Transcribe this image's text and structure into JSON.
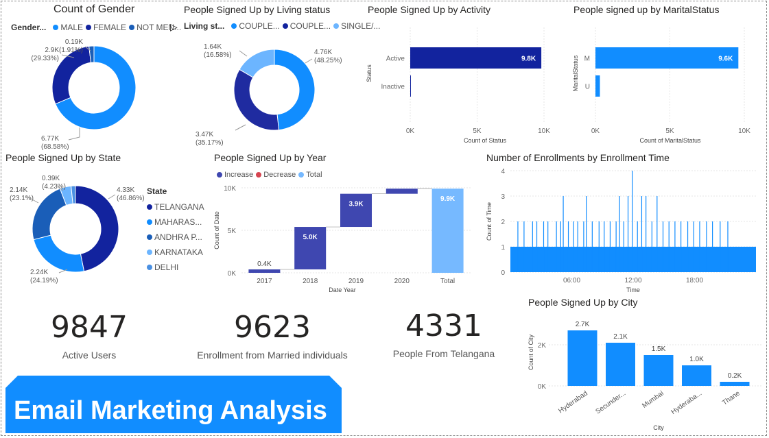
{
  "colors": {
    "dark_navy": "#12239E",
    "navy": "#1F2BA0",
    "blue": "#118DFF",
    "mid_blue": "#1A5EB8",
    "light_blue": "#6CB5FF",
    "increase": "#3F47B0",
    "decrease": "#D64550",
    "total": "#76B9FF",
    "banner": "#118DFF"
  },
  "banner": {
    "title": "Email Marketing Analysis"
  },
  "kpis": [
    {
      "value": "9847",
      "label": "Active Users"
    },
    {
      "value": "9623",
      "label": "Enrollment from Married individuals"
    },
    {
      "value": "4331",
      "label": "People From Telangana"
    }
  ],
  "chart_data": [
    {
      "id": "gender",
      "type": "pie",
      "title": "Count of Gender",
      "legend_title": "Gender...",
      "legend": [
        "MALE",
        "FEMALE",
        "NOT MEN..."
      ],
      "slices": [
        {
          "name": "MALE",
          "value": 6770,
          "label": "6.77K (68.58%)"
        },
        {
          "name": "FEMALE",
          "value": 2900,
          "label": "2.9K (29.33%)"
        },
        {
          "name": "NOT MEN...",
          "value": 190,
          "label": "0.19K (1.91%)"
        }
      ]
    },
    {
      "id": "living",
      "type": "pie",
      "title": "People Signed Up by Living status",
      "legend_title": "Living st...",
      "legend": [
        "COUPLE...",
        "COUPLE...",
        "SINGLE/..."
      ],
      "slices": [
        {
          "name": "COUPLE...",
          "value": 4760,
          "label": "4.76K (48.25%)"
        },
        {
          "name": "COUPLE...",
          "value": 3470,
          "label": "3.47K (35.17%)"
        },
        {
          "name": "SINGLE/...",
          "value": 1640,
          "label": "1.64K (16.58%)"
        }
      ]
    },
    {
      "id": "activity",
      "type": "bar",
      "orientation": "horizontal",
      "title": "People Signed Up by Activity",
      "categories": [
        "Active",
        "Inactive"
      ],
      "values": [
        9800,
        50
      ],
      "data_labels": [
        "9.8K",
        ""
      ],
      "xlabel": "Count of Status",
      "ylabel": "Status",
      "xlim": [
        0,
        10000
      ],
      "ticks": [
        "0K",
        "5K",
        "10K"
      ]
    },
    {
      "id": "marital",
      "type": "bar",
      "orientation": "horizontal",
      "title": "People signed up by MaritalStatus",
      "categories": [
        "M",
        "U"
      ],
      "values": [
        9600,
        300
      ],
      "data_labels": [
        "9.6K",
        ""
      ],
      "xlabel": "Count of MaritalStatus",
      "ylabel": "MaritalStatus",
      "xlim": [
        0,
        10000
      ],
      "ticks": [
        "0K",
        "5K",
        "10K"
      ]
    },
    {
      "id": "state",
      "type": "pie",
      "title": "People Signed Up by State",
      "legend_title": "State",
      "legend": [
        "TELANGANA",
        "MAHARAS...",
        "ANDHRA P...",
        "KARNATAKA",
        "DELHI"
      ],
      "slices": [
        {
          "name": "TELANGANA",
          "value": 4330,
          "label": "4.33K (46.86%)"
        },
        {
          "name": "MAHARAS...",
          "value": 2240,
          "label": "2.24K (24.19%)"
        },
        {
          "name": "ANDHRA P...",
          "value": 2140,
          "label": "2.14K (23.1%)"
        },
        {
          "name": "KARNATAKA",
          "value": 390,
          "label": "0.39K (4.23%)"
        },
        {
          "name": "DELHI",
          "value": 150,
          "label": ""
        }
      ]
    },
    {
      "id": "year",
      "type": "bar",
      "subtype": "waterfall",
      "title": "People Signed Up by Year",
      "legend": [
        "Increase",
        "Decrease",
        "Total"
      ],
      "categories": [
        "2017",
        "2018",
        "2019",
        "2020",
        "Total"
      ],
      "values": [
        400,
        5000,
        3900,
        600,
        9900
      ],
      "data_labels": [
        "0.4K",
        "5.0K",
        "3.9K",
        "",
        "9.9K"
      ],
      "xlabel": "Date Year",
      "ylabel": "Count of Date",
      "ylim": [
        0,
        10000
      ],
      "ticks": [
        "0K",
        "5K",
        "10K"
      ]
    },
    {
      "id": "enrollment_time",
      "type": "bar",
      "title": "Number of Enrollments by Enrollment Time",
      "xlabel": "Time",
      "ylabel": "Count of Time",
      "ylim": [
        0,
        4
      ],
      "yticks": [
        "0",
        "1",
        "2",
        "3",
        "4"
      ],
      "xticks": [
        "06:00",
        "12:00",
        "18:00"
      ],
      "baseline": 1,
      "spikes": [
        {
          "t": "00:44",
          "v": 2
        },
        {
          "t": "01:20",
          "v": 2
        },
        {
          "t": "02:10",
          "v": 2
        },
        {
          "t": "02:35",
          "v": 2
        },
        {
          "t": "03:15",
          "v": 2
        },
        {
          "t": "03:40",
          "v": 2
        },
        {
          "t": "04:30",
          "v": 2
        },
        {
          "t": "04:55",
          "v": 2
        },
        {
          "t": "05:10",
          "v": 3
        },
        {
          "t": "05:40",
          "v": 2
        },
        {
          "t": "06:10",
          "v": 2
        },
        {
          "t": "06:35",
          "v": 2
        },
        {
          "t": "07:10",
          "v": 2
        },
        {
          "t": "07:25",
          "v": 3
        },
        {
          "t": "08:00",
          "v": 2
        },
        {
          "t": "08:40",
          "v": 2
        },
        {
          "t": "09:10",
          "v": 2
        },
        {
          "t": "09:45",
          "v": 2
        },
        {
          "t": "10:20",
          "v": 2
        },
        {
          "t": "10:40",
          "v": 3
        },
        {
          "t": "11:05",
          "v": 2
        },
        {
          "t": "11:30",
          "v": 3
        },
        {
          "t": "11:55",
          "v": 4
        },
        {
          "t": "12:25",
          "v": 2
        },
        {
          "t": "12:50",
          "v": 3
        },
        {
          "t": "13:15",
          "v": 3
        },
        {
          "t": "13:50",
          "v": 2
        },
        {
          "t": "14:20",
          "v": 3
        },
        {
          "t": "14:55",
          "v": 2
        },
        {
          "t": "15:30",
          "v": 2
        },
        {
          "t": "16:05",
          "v": 2
        },
        {
          "t": "16:40",
          "v": 2
        },
        {
          "t": "17:20",
          "v": 2
        },
        {
          "t": "17:55",
          "v": 2
        },
        {
          "t": "18:30",
          "v": 2
        },
        {
          "t": "19:10",
          "v": 2
        },
        {
          "t": "19:45",
          "v": 2
        },
        {
          "t": "20:30",
          "v": 2
        },
        {
          "t": "21:15",
          "v": 2
        }
      ]
    },
    {
      "id": "city",
      "type": "bar",
      "title": "People Signed Up by City",
      "categories": [
        "Hyderabad",
        "Secunder...",
        "Mumbai",
        "Hyderaba...",
        "Thane"
      ],
      "values": [
        2700,
        2100,
        1500,
        1000,
        200
      ],
      "data_labels": [
        "2.7K",
        "2.1K",
        "1.5K",
        "1.0K",
        "0.2K"
      ],
      "xlabel": "City",
      "ylabel": "Count of City",
      "ylim": [
        0,
        3000
      ],
      "ticks": [
        "0K",
        "2K"
      ]
    }
  ]
}
